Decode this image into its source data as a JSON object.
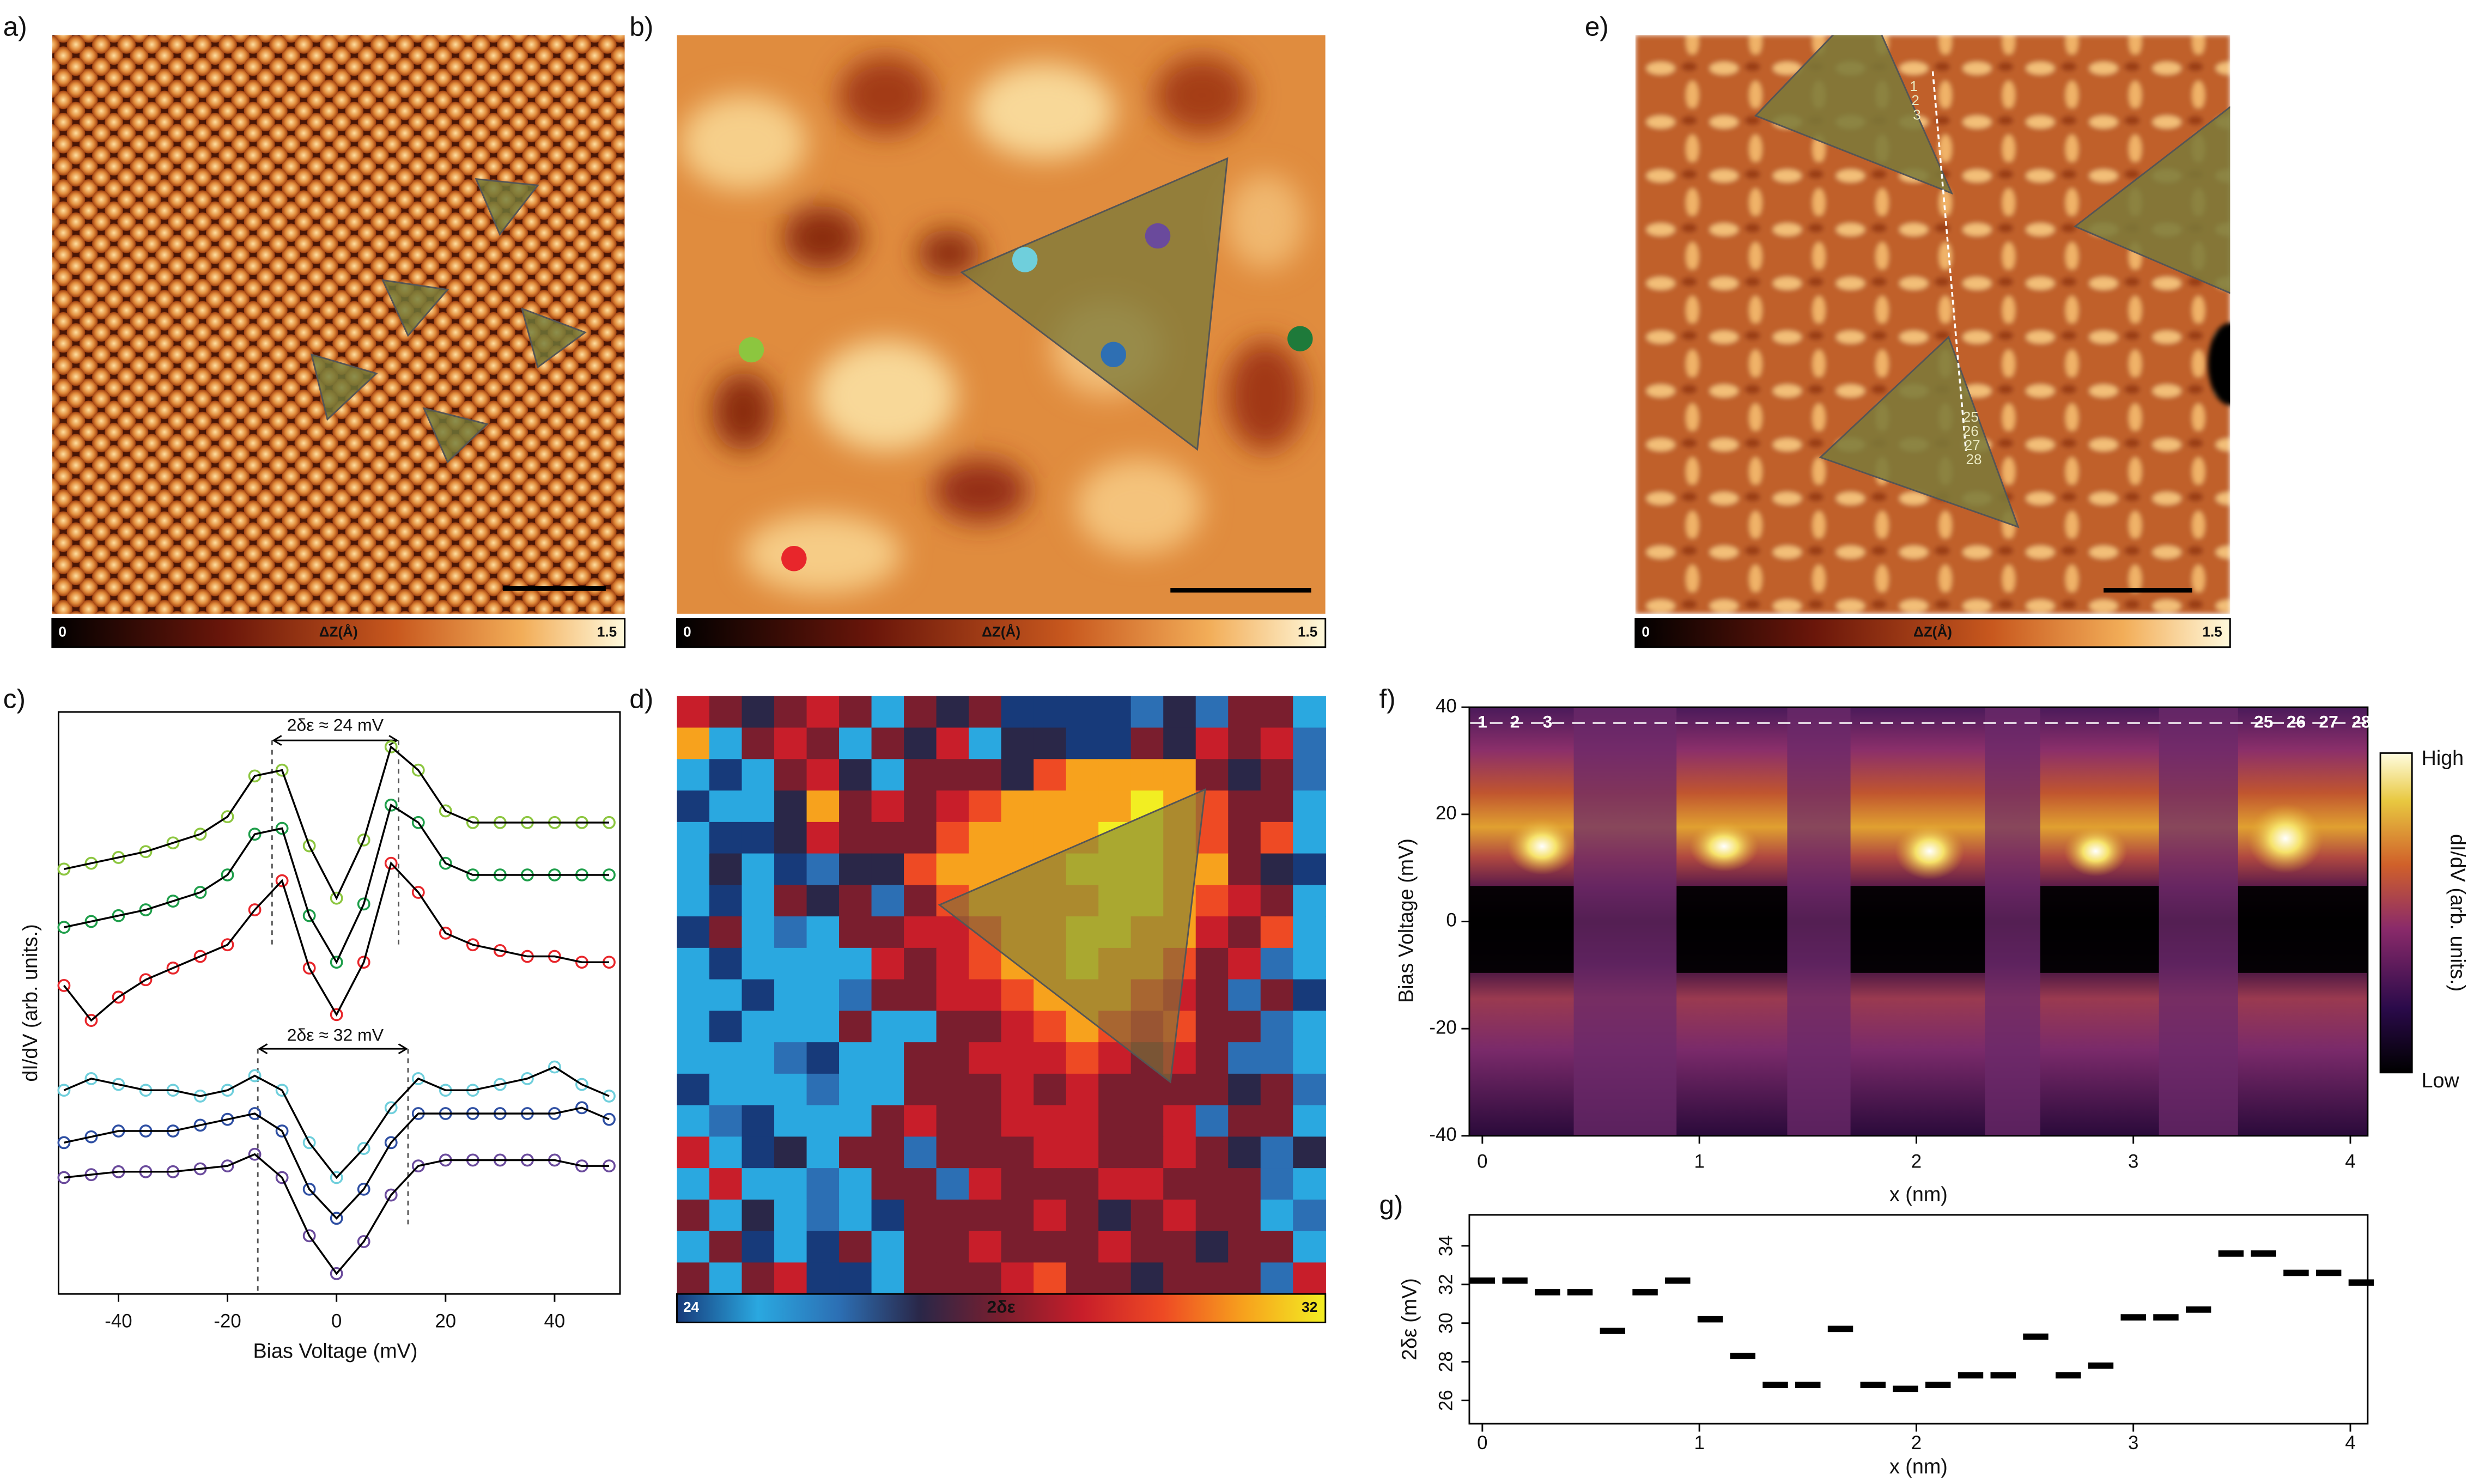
{
  "images": [
    {
      "panel_label": "a)",
      "colorbar": {
        "label": "ΔZ(Å)",
        "clim": [
          0,
          1.5
        ]
      }
    },
    {
      "panel_label": "b)",
      "colorbar": {
        "label": "ΔZ(Å)",
        "clim": [
          0,
          1.5
        ]
      }
    },
    {
      "panel_label": "e)",
      "colorbar": {
        "label": "ΔZ(Å)",
        "clim": [
          0,
          1.5
        ]
      },
      "point_labels": [
        "1",
        "2",
        "3",
        "25",
        "26",
        "27",
        "28"
      ]
    }
  ],
  "chart_data": [
    {
      "type": "line",
      "panel_label": "c)",
      "xlabel": "Bias Voltage (mV)",
      "ylabel": "dI/dV (arb. units.)",
      "annotations": [
        "2δε ≈ 24 mV",
        "2δε ≈ 32 mV"
      ],
      "x": [
        -50,
        -45,
        -40,
        -35,
        -30,
        -25,
        -20,
        -15,
        -10,
        -5,
        0,
        5,
        10,
        15,
        20,
        25,
        30,
        35,
        40,
        45,
        50
      ],
      "xlim": [
        -51,
        52
      ],
      "xticks": [
        -40,
        -20,
        0,
        20,
        40
      ],
      "ylim": [
        0,
        10
      ],
      "series": [
        {
          "color": "#8cc63f",
          "values": [
            7.3,
            7.4,
            7.5,
            7.6,
            7.75,
            7.9,
            8.2,
            8.9,
            9.0,
            7.7,
            6.8,
            7.8,
            9.4,
            9.0,
            8.3,
            8.1,
            8.1,
            8.1,
            8.1,
            8.1,
            8.1
          ]
        },
        {
          "color": "#1e9e4a",
          "values": [
            6.3,
            6.4,
            6.5,
            6.6,
            6.75,
            6.9,
            7.2,
            7.9,
            8.0,
            6.5,
            5.7,
            6.7,
            8.4,
            8.1,
            7.4,
            7.2,
            7.2,
            7.2,
            7.2,
            7.2,
            7.2
          ]
        },
        {
          "color": "#e8262b",
          "values": [
            5.3,
            4.7,
            5.1,
            5.4,
            5.6,
            5.8,
            6.0,
            6.6,
            7.1,
            5.6,
            4.8,
            5.7,
            7.4,
            6.9,
            6.2,
            6.0,
            5.9,
            5.8,
            5.8,
            5.7,
            5.7
          ]
        },
        {
          "color": "#6fcfdc",
          "values": [
            3.5,
            3.7,
            3.6,
            3.5,
            3.5,
            3.4,
            3.5,
            3.75,
            3.5,
            2.6,
            2.0,
            2.5,
            3.2,
            3.7,
            3.5,
            3.5,
            3.6,
            3.7,
            3.9,
            3.6,
            3.4
          ]
        },
        {
          "color": "#2e4fa3",
          "values": [
            2.6,
            2.7,
            2.8,
            2.8,
            2.8,
            2.9,
            3.0,
            3.1,
            2.8,
            1.8,
            1.3,
            1.8,
            2.6,
            3.1,
            3.1,
            3.1,
            3.1,
            3.1,
            3.1,
            3.2,
            3.0
          ]
        },
        {
          "color": "#6a4a9c",
          "values": [
            2.0,
            2.05,
            2.1,
            2.1,
            2.1,
            2.15,
            2.2,
            2.4,
            2.0,
            1.0,
            0.35,
            0.9,
            1.7,
            2.2,
            2.3,
            2.3,
            2.3,
            2.3,
            2.3,
            2.2,
            2.2
          ]
        }
      ]
    },
    {
      "type": "heatmap",
      "panel_label": "d)",
      "colorbar_label": "2δε",
      "clim": [
        24,
        32
      ],
      "colormap": [
        "#173a7a",
        "#2aa8e0",
        "#2c6fb4",
        "#2a2748",
        "#7a1e2e",
        "#c81e2a",
        "#ee4a24",
        "#f7a21d",
        "#f2ee22"
      ],
      "values": [
        [
          29,
          28,
          27,
          28,
          29,
          28,
          25,
          28,
          27,
          28,
          24,
          24,
          24,
          24,
          26,
          27,
          26,
          28,
          28,
          25
        ],
        [
          31,
          25,
          28,
          29,
          28,
          25,
          28,
          27,
          29,
          25,
          27,
          27,
          24,
          24,
          28,
          27,
          29,
          28,
          29,
          26
        ],
        [
          25,
          24,
          25,
          28,
          29,
          27,
          25,
          28,
          28,
          28,
          27,
          30,
          31,
          31,
          31,
          31,
          28,
          27,
          28,
          26
        ],
        [
          24,
          25,
          25,
          27,
          31,
          28,
          29,
          28,
          29,
          30,
          31,
          31,
          31,
          31,
          32,
          31,
          30,
          28,
          28,
          25
        ],
        [
          25,
          24,
          24,
          27,
          29,
          28,
          28,
          28,
          30,
          31,
          31,
          31,
          31,
          32,
          32,
          31,
          30,
          28,
          30,
          25
        ],
        [
          25,
          27,
          25,
          24,
          26,
          27,
          27,
          30,
          31,
          31,
          31,
          31,
          32,
          32,
          32,
          31,
          31,
          28,
          27,
          24
        ],
        [
          25,
          24,
          25,
          28,
          27,
          28,
          26,
          28,
          30,
          31,
          31,
          31,
          31,
          32,
          32,
          31,
          30,
          29,
          28,
          25
        ],
        [
          24,
          28,
          25,
          26,
          25,
          28,
          28,
          29,
          29,
          30,
          31,
          31,
          32,
          32,
          31,
          31,
          29,
          28,
          30,
          25
        ],
        [
          25,
          24,
          25,
          25,
          25,
          25,
          29,
          28,
          29,
          30,
          31,
          31,
          32,
          31,
          31,
          30,
          28,
          29,
          26,
          25
        ],
        [
          25,
          25,
          24,
          25,
          25,
          26,
          28,
          28,
          29,
          29,
          30,
          31,
          31,
          31,
          30,
          29,
          28,
          26,
          28,
          24
        ],
        [
          25,
          24,
          25,
          25,
          25,
          28,
          25,
          25,
          28,
          28,
          29,
          30,
          31,
          30,
          29,
          30,
          28,
          28,
          26,
          25
        ],
        [
          25,
          25,
          25,
          26,
          24,
          25,
          25,
          28,
          28,
          29,
          29,
          29,
          30,
          29,
          28,
          29,
          28,
          26,
          26,
          25
        ],
        [
          24,
          25,
          25,
          25,
          26,
          25,
          25,
          28,
          28,
          28,
          29,
          28,
          29,
          28,
          28,
          28,
          28,
          27,
          28,
          26
        ],
        [
          25,
          26,
          24,
          25,
          25,
          25,
          28,
          29,
          28,
          28,
          29,
          29,
          29,
          28,
          28,
          29,
          26,
          28,
          28,
          25
        ],
        [
          29,
          25,
          24,
          27,
          25,
          28,
          28,
          26,
          28,
          28,
          28,
          29,
          29,
          28,
          28,
          29,
          28,
          27,
          26,
          27
        ],
        [
          25,
          29,
          25,
          25,
          26,
          25,
          28,
          28,
          26,
          29,
          28,
          28,
          28,
          29,
          29,
          28,
          28,
          28,
          26,
          25
        ],
        [
          28,
          25,
          27,
          25,
          26,
          25,
          24,
          28,
          28,
          28,
          28,
          29,
          28,
          27,
          28,
          29,
          28,
          28,
          25,
          26
        ],
        [
          25,
          28,
          24,
          25,
          24,
          28,
          25,
          28,
          28,
          29,
          28,
          28,
          28,
          29,
          28,
          28,
          27,
          28,
          28,
          25
        ],
        [
          28,
          25,
          28,
          29,
          24,
          24,
          25,
          28,
          28,
          28,
          29,
          30,
          28,
          28,
          27,
          28,
          28,
          28,
          26,
          29
        ]
      ]
    },
    {
      "type": "map",
      "panel_label": "f)",
      "xlabel": "x (nm)",
      "ylabel": "Bias Voltage (mV)",
      "xlim": [
        -0.06,
        4.08
      ],
      "xticks": [
        0,
        1,
        2,
        3,
        4
      ],
      "ylim": [
        -40,
        40
      ],
      "yticks": [
        -40,
        -20,
        0,
        20,
        40
      ],
      "column_labels": [
        "1",
        "2",
        "3",
        "25",
        "26",
        "27",
        "28"
      ],
      "colorbar": {
        "label": "dI/dV (arb. units.)",
        "high": "High",
        "low": "Low"
      }
    },
    {
      "type": "scatter",
      "panel_label": "g)",
      "xlabel": "x (nm)",
      "ylabel": "2δε (mV)",
      "color": "#000000",
      "x": [
        0,
        0.15,
        0.3,
        0.45,
        0.6,
        0.75,
        0.9,
        1.05,
        1.2,
        1.35,
        1.5,
        1.65,
        1.8,
        1.95,
        2.1,
        2.25,
        2.4,
        2.55,
        2.7,
        2.85,
        3.0,
        3.15,
        3.3,
        3.45,
        3.6,
        3.75,
        3.9,
        4.05
      ],
      "values": [
        32.2,
        32.2,
        31.6,
        31.6,
        29.6,
        31.6,
        32.2,
        30.2,
        28.3,
        26.8,
        26.8,
        29.7,
        26.8,
        26.6,
        26.8,
        27.3,
        27.3,
        29.3,
        27.3,
        27.8,
        30.3,
        30.3,
        30.7,
        33.6,
        33.6,
        32.6,
        32.6,
        32.1
      ],
      "xlim": [
        -0.06,
        4.08
      ],
      "xticks": [
        0,
        1,
        2,
        3,
        4
      ],
      "ylim": [
        24.8,
        35.6
      ],
      "yticks": [
        26,
        28,
        30,
        32,
        34
      ]
    }
  ]
}
